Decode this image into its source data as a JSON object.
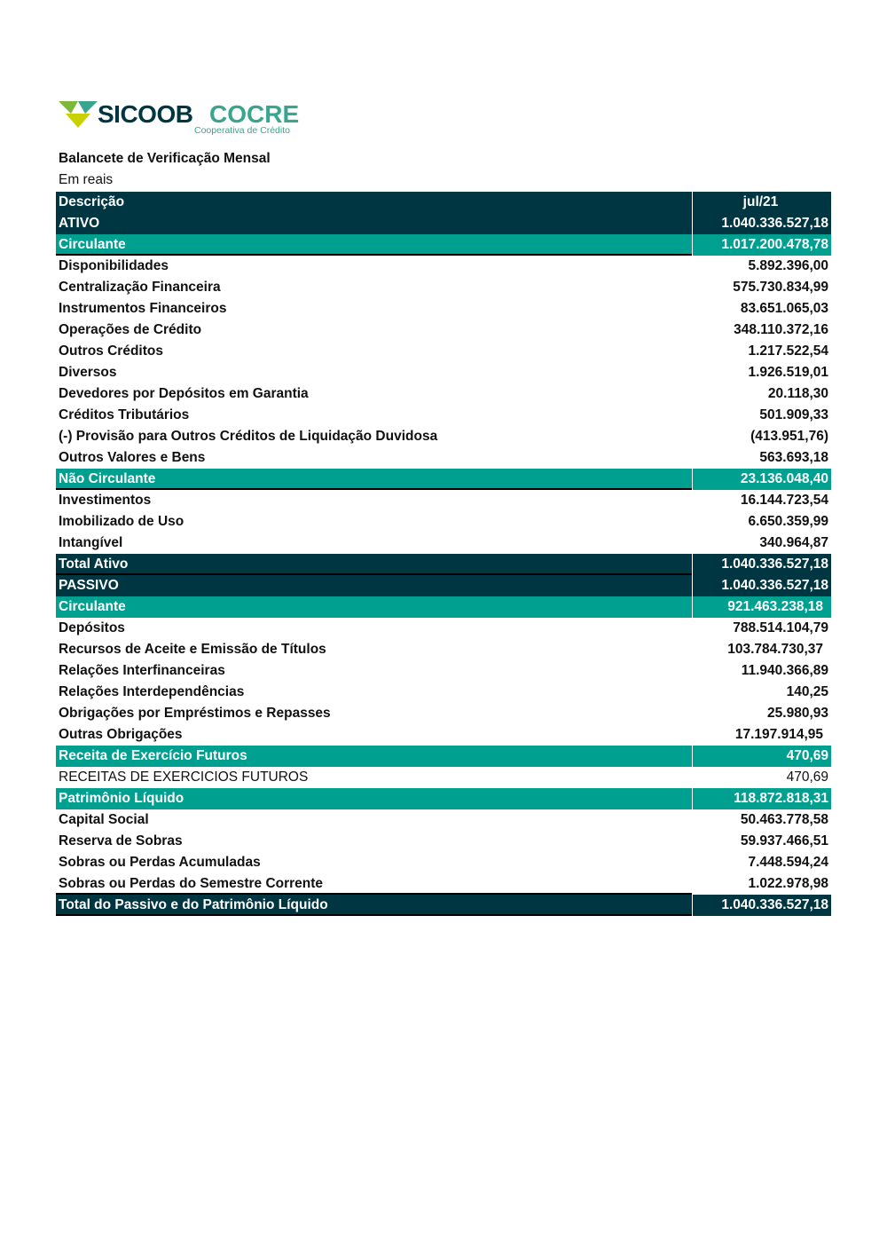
{
  "logo": {
    "brand": "SICOOB",
    "name": "COCRE",
    "tagline": "Cooperativa de Crédito",
    "colors": {
      "dark": "#003641",
      "teal": "#00a091",
      "lime": "#c9d200"
    }
  },
  "header": {
    "title": "Balancete de Verificação Mensal",
    "subtitle": "Em reais"
  },
  "table": {
    "columns": [
      "Descrição",
      "jul/21"
    ],
    "rows": [
      {
        "label": "ATIVO",
        "value": "1.040.336.527,18",
        "style": "dark"
      },
      {
        "label": "Circulante",
        "value": "1.017.200.478,78",
        "style": "teal line"
      },
      {
        "label": "Disponibilidades",
        "value": "5.892.396,00",
        "style": ""
      },
      {
        "label": "Centralização Financeira",
        "value": "575.730.834,99",
        "style": ""
      },
      {
        "label": "Instrumentos Financeiros",
        "value": "83.651.065,03",
        "style": ""
      },
      {
        "label": "Operações de Crédito",
        "value": "348.110.372,16",
        "style": ""
      },
      {
        "label": "Outros Créditos",
        "value": "1.217.522,54",
        "style": ""
      },
      {
        "label": "Diversos",
        "value": "1.926.519,01",
        "style": ""
      },
      {
        "label": "Devedores por Depósitos em Garantia",
        "value": "20.118,30",
        "style": ""
      },
      {
        "label": "Créditos Tributários",
        "value": "501.909,33",
        "style": ""
      },
      {
        "label": "(-) Provisão para Outros Créditos de Liquidação Duvidosa",
        "value": "(413.951,76)",
        "style": ""
      },
      {
        "label": "Outros Valores e Bens",
        "value": "563.693,18",
        "style": ""
      },
      {
        "label": "Não Circulante",
        "value": "23.136.048,40",
        "style": "teal line"
      },
      {
        "label": "Investimentos",
        "value": "16.144.723,54",
        "style": ""
      },
      {
        "label": "Imobilizado de Uso",
        "value": "6.650.359,99",
        "style": ""
      },
      {
        "label": "Intangível",
        "value": "340.964,87",
        "style": ""
      },
      {
        "label": "Total Ativo",
        "value": "1.040.336.527,18",
        "style": "dark line"
      },
      {
        "label": "PASSIVO",
        "value": "1.040.336.527,18",
        "style": "dark"
      },
      {
        "label": "Circulante",
        "value": "921.463.238,18",
        "style": "teal",
        "pad": true
      },
      {
        "label": "Depósitos",
        "value": "788.514.104,79",
        "style": ""
      },
      {
        "label": "Recursos de Aceite e Emissão de Títulos",
        "value": "103.784.730,37",
        "style": "",
        "pad": true
      },
      {
        "label": "Relações Interfinanceiras",
        "value": "11.940.366,89",
        "style": ""
      },
      {
        "label": "Relações Interdependências",
        "value": "140,25",
        "style": ""
      },
      {
        "label": "Obrigações por Empréstimos e Repasses",
        "value": "25.980,93",
        "style": ""
      },
      {
        "label": "Outras Obrigações",
        "value": "17.197.914,95",
        "style": "",
        "pad": true
      },
      {
        "label": "Receita de Exercício Futuros",
        "value": "470,69",
        "style": "teal"
      },
      {
        "label": "RECEITAS DE EXERCICIOS FUTUROS",
        "value": "470,69",
        "style": "plain"
      },
      {
        "label": "Patrimônio Líquido",
        "value": "118.872.818,31",
        "style": "teal"
      },
      {
        "label": "Capital Social",
        "value": "50.463.778,58",
        "style": ""
      },
      {
        "label": "Reserva de Sobras",
        "value": "59.937.466,51",
        "style": ""
      },
      {
        "label": "Sobras ou Perdas Acumuladas",
        "value": "7.448.594,24",
        "style": ""
      },
      {
        "label": "Sobras ou Perdas do Semestre Corrente",
        "value": "1.022.978,98",
        "style": "line"
      },
      {
        "label": "Total do Passivo e do Patrimônio Líquido",
        "value": "1.040.336.527,18",
        "style": "dark line"
      }
    ]
  }
}
